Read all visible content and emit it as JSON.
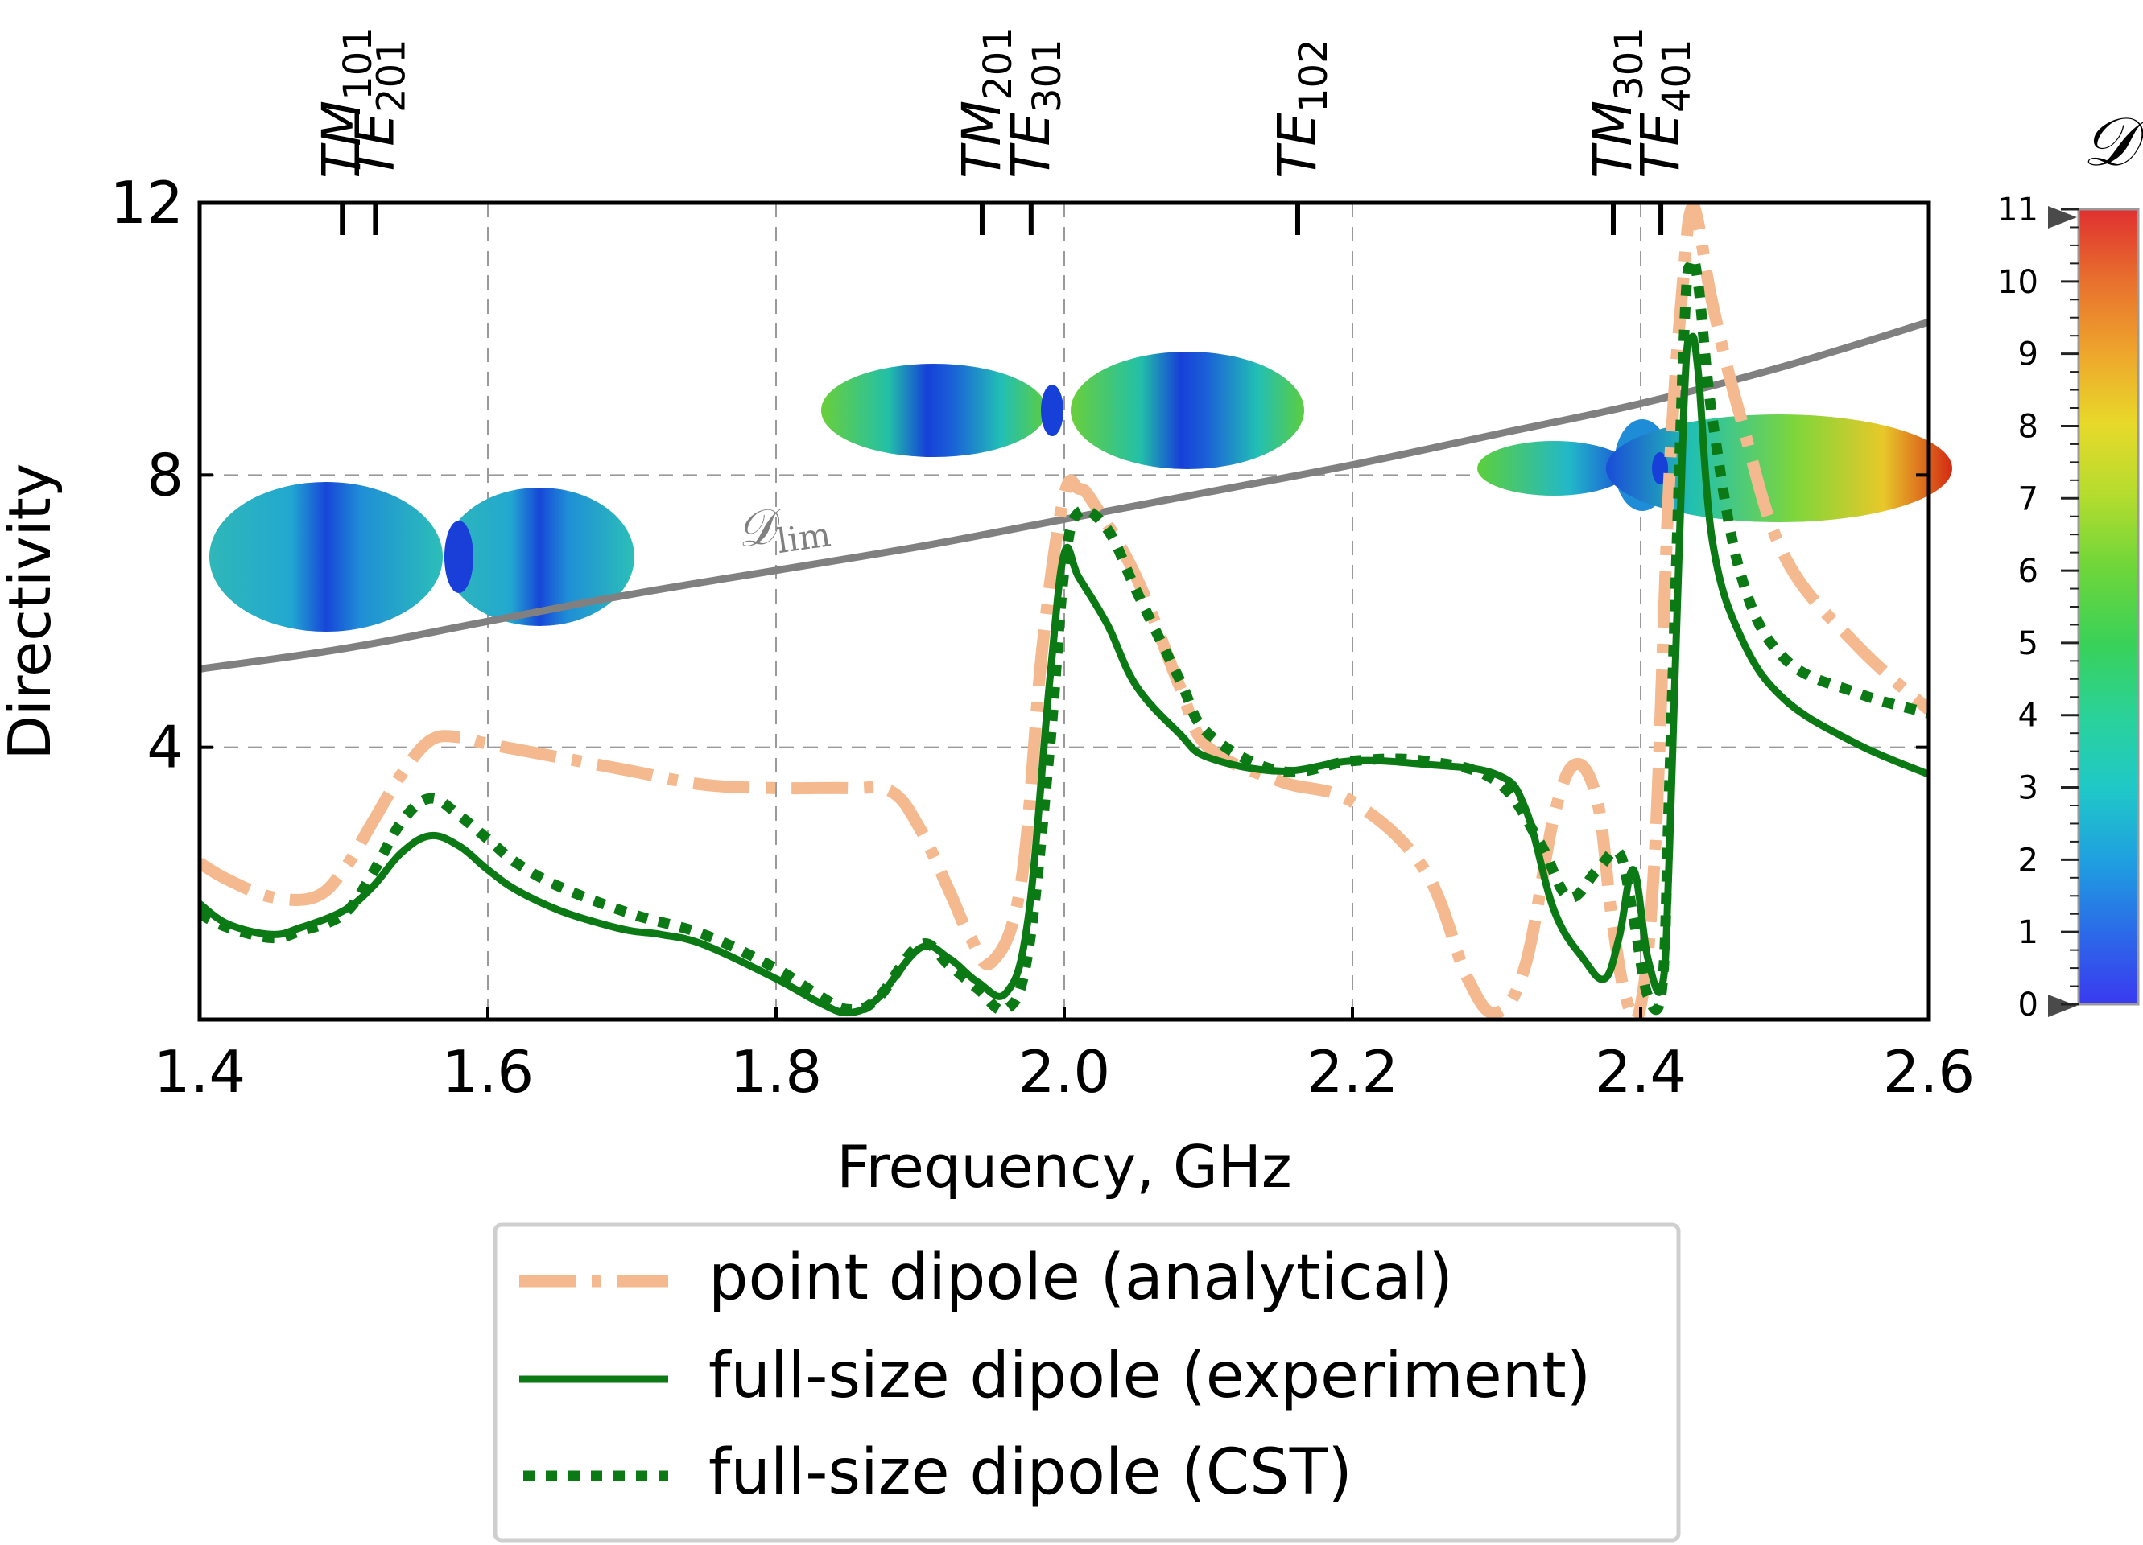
{
  "chart_data": {
    "type": "line",
    "xlabel": "Frequency, GHz",
    "ylabel": "Directivity",
    "xlim": [
      1.4,
      2.6
    ],
    "ylim": [
      0,
      12
    ],
    "xticks": [
      {
        "value": 1.4,
        "label": "1.4"
      },
      {
        "value": 1.6,
        "label": "1.6"
      },
      {
        "value": 1.8,
        "label": "1.8"
      },
      {
        "value": 2.0,
        "label": "2.0"
      },
      {
        "value": 2.2,
        "label": "2.2"
      },
      {
        "value": 2.4,
        "label": "2.4"
      },
      {
        "value": 2.6,
        "label": "2.6"
      }
    ],
    "yticks": [
      {
        "value": 4,
        "label": "4"
      },
      {
        "value": 8,
        "label": "8"
      },
      {
        "value": 12,
        "label": "12"
      }
    ],
    "grid": true,
    "modes": [
      {
        "base": "TM",
        "sub": "101",
        "freq": 1.499
      },
      {
        "base": "TE",
        "sub": "201",
        "freq": 1.522
      },
      {
        "base": "TM",
        "sub": "201",
        "freq": 1.943
      },
      {
        "base": "TE",
        "sub": "301",
        "freq": 1.977
      },
      {
        "base": "TE",
        "sub": "102",
        "freq": 2.162
      },
      {
        "base": "TM",
        "sub": "301",
        "freq": 2.381
      },
      {
        "base": "TE",
        "sub": "401",
        "freq": 2.414
      }
    ],
    "limit_curve": {
      "name": "D_lim",
      "label_main": "𝒟",
      "label_sub": "lim",
      "color": "#808080",
      "x": [
        1.4,
        1.5,
        1.6,
        1.7,
        1.8,
        1.9,
        2.0,
        2.1,
        2.2,
        2.3,
        2.4,
        2.5,
        2.6
      ],
      "y": [
        5.15,
        5.45,
        5.85,
        6.25,
        6.6,
        6.95,
        7.35,
        7.75,
        8.15,
        8.6,
        9.05,
        9.6,
        10.25
      ]
    },
    "series": [
      {
        "name": "point dipole (analytical)",
        "color": "#f4b98e",
        "style": "dashdot",
        "x": [
          1.4,
          1.42,
          1.45,
          1.48,
          1.5,
          1.52,
          1.54,
          1.56,
          1.58,
          1.6,
          1.65,
          1.7,
          1.75,
          1.8,
          1.85,
          1.88,
          1.9,
          1.92,
          1.935,
          1.95,
          1.97,
          1.985,
          2.0,
          2.01,
          2.02,
          2.05,
          2.08,
          2.1,
          2.15,
          2.2,
          2.25,
          2.28,
          2.3,
          2.32,
          2.34,
          2.355,
          2.37,
          2.38,
          2.39,
          2.4,
          2.41,
          2.42,
          2.43,
          2.435,
          2.44,
          2.45,
          2.47,
          2.5,
          2.55,
          2.6
        ],
        "y": [
          2.3,
          2.05,
          1.8,
          1.8,
          2.2,
          2.9,
          3.6,
          4.1,
          4.15,
          4.05,
          3.85,
          3.65,
          3.45,
          3.4,
          3.4,
          3.35,
          2.8,
          1.9,
          1.2,
          0.85,
          2.0,
          5.5,
          7.7,
          7.8,
          7.6,
          6.5,
          4.9,
          4.0,
          3.5,
          3.2,
          2.2,
          0.6,
          0.1,
          0.8,
          3.0,
          3.75,
          3.2,
          1.5,
          0.3,
          0.2,
          2.5,
          8.0,
          11.0,
          11.9,
          11.7,
          10.5,
          8.8,
          6.8,
          5.5,
          4.55
        ]
      },
      {
        "name": "full-size dipole (experiment)",
        "color": "#0b7a14",
        "style": "solid",
        "x": [
          1.4,
          1.42,
          1.45,
          1.47,
          1.5,
          1.52,
          1.54,
          1.56,
          1.58,
          1.6,
          1.62,
          1.65,
          1.68,
          1.7,
          1.72,
          1.75,
          1.8,
          1.83,
          1.85,
          1.87,
          1.9,
          1.92,
          1.94,
          1.96,
          1.975,
          1.99,
          2.0,
          2.01,
          2.03,
          2.05,
          2.08,
          2.1,
          2.15,
          2.2,
          2.25,
          2.3,
          2.32,
          2.34,
          2.36,
          2.375,
          2.385,
          2.395,
          2.405,
          2.415,
          2.42,
          2.43,
          2.435,
          2.44,
          2.45,
          2.47,
          2.5,
          2.55,
          2.6
        ],
        "y": [
          1.7,
          1.4,
          1.25,
          1.35,
          1.6,
          1.95,
          2.45,
          2.7,
          2.55,
          2.2,
          1.9,
          1.6,
          1.4,
          1.3,
          1.25,
          1.1,
          0.6,
          0.25,
          0.1,
          0.3,
          1.05,
          0.9,
          0.55,
          0.4,
          1.5,
          5.0,
          6.85,
          6.5,
          5.8,
          4.9,
          4.2,
          3.85,
          3.65,
          3.8,
          3.75,
          3.6,
          3.1,
          1.6,
          0.9,
          0.6,
          1.2,
          2.2,
          0.9,
          0.5,
          2.5,
          9.0,
          10.0,
          9.5,
          7.0,
          5.6,
          4.7,
          4.05,
          3.6
        ]
      },
      {
        "name": "full-size dipole (CST)",
        "color": "#0b7a14",
        "style": "dotted",
        "x": [
          1.4,
          1.42,
          1.45,
          1.47,
          1.5,
          1.52,
          1.54,
          1.56,
          1.58,
          1.6,
          1.62,
          1.65,
          1.7,
          1.75,
          1.8,
          1.83,
          1.85,
          1.87,
          1.9,
          1.92,
          1.94,
          1.96,
          1.975,
          1.99,
          2.0,
          2.01,
          2.03,
          2.05,
          2.08,
          2.1,
          2.15,
          2.2,
          2.25,
          2.3,
          2.33,
          2.35,
          2.37,
          2.385,
          2.395,
          2.405,
          2.415,
          2.42,
          2.43,
          2.435,
          2.44,
          2.45,
          2.47,
          2.5,
          2.55,
          2.6
        ],
        "y": [
          1.55,
          1.35,
          1.2,
          1.3,
          1.55,
          2.15,
          2.9,
          3.25,
          3.0,
          2.65,
          2.3,
          1.95,
          1.55,
          1.25,
          0.75,
          0.35,
          0.15,
          0.3,
          1.1,
          0.8,
          0.45,
          0.15,
          1.0,
          4.0,
          6.6,
          7.45,
          7.2,
          6.3,
          5.0,
          4.2,
          3.65,
          3.8,
          3.8,
          3.5,
          2.6,
          1.8,
          2.2,
          2.45,
          1.5,
          0.35,
          0.5,
          3.5,
          10.0,
          11.1,
          10.8,
          8.8,
          6.5,
          5.3,
          4.8,
          4.5
        ]
      }
    ],
    "legend": {
      "position": "below",
      "entries": [
        "point dipole (analytical)",
        "full-size dipole (experiment)",
        "full-size dipole (CST)"
      ]
    },
    "colorbar": {
      "title": "𝒟",
      "min": 0,
      "max": 11,
      "ticks": [
        "0",
        "1",
        "2",
        "3",
        "4",
        "5",
        "6",
        "7",
        "8",
        "9",
        "10",
        "11"
      ],
      "colors": [
        "#3a3af0",
        "#2b6ae8",
        "#1f9fe0",
        "#1fc8c8",
        "#2ad29b",
        "#38d15a",
        "#6fd63a",
        "#b4dc2e",
        "#e8d92a",
        "#eea52c",
        "#e8702e",
        "#e03030"
      ]
    },
    "patterns": [
      {
        "name": "pattern-1",
        "freq": 1.6,
        "colors": [
          "#2ab3c9",
          "#1e8fd6",
          "#1a4fd8"
        ]
      },
      {
        "name": "pattern-2",
        "freq": 2.0,
        "colors": [
          "#62cf3e",
          "#20b8c8",
          "#1a56d8"
        ]
      },
      {
        "name": "pattern-3",
        "freq": 2.44,
        "colors": [
          "#d83a18",
          "#8cd43c",
          "#1c4fd6"
        ]
      }
    ]
  }
}
